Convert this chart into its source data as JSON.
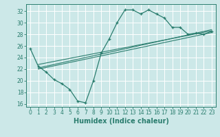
{
  "title": "",
  "xlabel": "Humidex (Indice chaleur)",
  "ylabel": "",
  "xlim": [
    -0.5,
    23.5
  ],
  "ylim": [
    15.5,
    33.2
  ],
  "xticks": [
    0,
    1,
    2,
    3,
    4,
    5,
    6,
    7,
    8,
    9,
    10,
    11,
    12,
    13,
    14,
    15,
    16,
    17,
    18,
    19,
    20,
    21,
    22,
    23
  ],
  "yticks": [
    16,
    18,
    20,
    22,
    24,
    26,
    28,
    30,
    32
  ],
  "curve_x": [
    0,
    1,
    2,
    3,
    4,
    5,
    6,
    7,
    8,
    9,
    10,
    11,
    12,
    13,
    14,
    15,
    16,
    17,
    18,
    19,
    20,
    21,
    22,
    23
  ],
  "curve_y": [
    25.5,
    22.5,
    21.5,
    20.2,
    19.5,
    18.5,
    16.5,
    16.2,
    20.0,
    24.8,
    27.2,
    30.0,
    32.2,
    32.2,
    31.5,
    32.2,
    31.5,
    30.8,
    29.2,
    29.2,
    28.0,
    28.2,
    28.0,
    28.5
  ],
  "line1_x": [
    1,
    23
  ],
  "line1_y": [
    22.2,
    28.8
  ],
  "line2_x": [
    1,
    23
  ],
  "line2_y": [
    22.0,
    28.3
  ],
  "line3_x": [
    1,
    23
  ],
  "line3_y": [
    22.8,
    28.6
  ],
  "color": "#2a7d6e",
  "bg_color": "#cce8e8",
  "grid_color": "#ffffff",
  "tick_fontsize": 5.5,
  "label_fontsize": 7.0
}
